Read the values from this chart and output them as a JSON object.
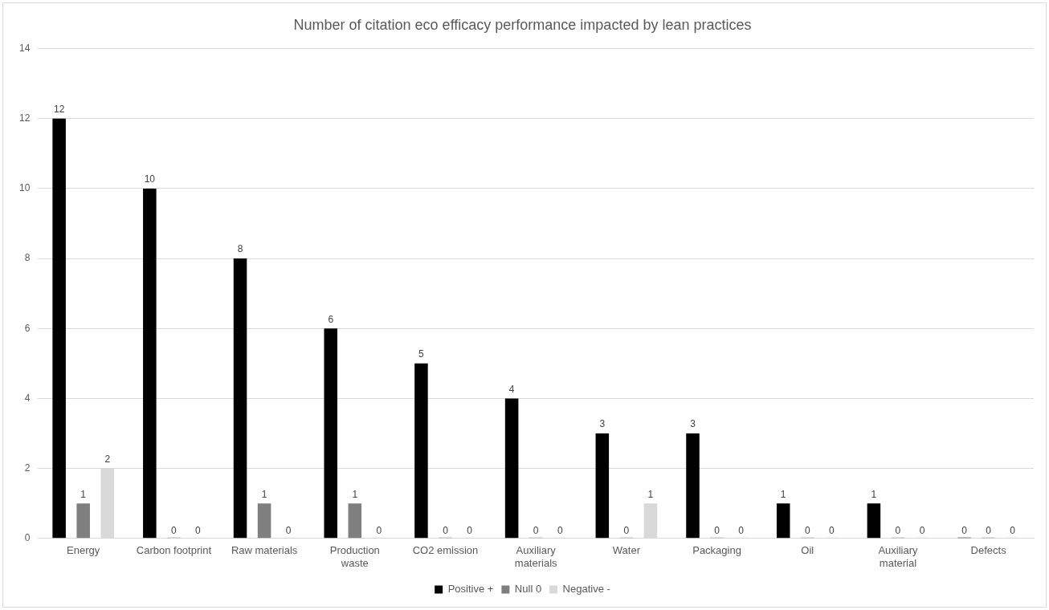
{
  "chart_data": {
    "type": "bar",
    "title": "Number of citation eco efficacy performance impacted by lean practices",
    "categories": [
      "Energy",
      "Carbon footprint",
      "Raw materials",
      "Production waste",
      "CO2 emission",
      "Auxiliary materials",
      "Water",
      "Packaging",
      "Oil",
      "Auxiliary material",
      "Defects"
    ],
    "series": [
      {
        "name": "Positive +",
        "color": "#000000",
        "values": [
          12,
          10,
          8,
          6,
          5,
          4,
          3,
          3,
          1,
          1,
          0
        ]
      },
      {
        "name": "Null 0",
        "color": "#7f7f7f",
        "values": [
          1,
          0,
          1,
          1,
          0,
          0,
          0,
          0,
          0,
          0,
          0
        ]
      },
      {
        "name": "Negative -",
        "color": "#d9d9d9",
        "values": [
          2,
          0,
          0,
          0,
          0,
          0,
          1,
          0,
          0,
          0,
          0
        ]
      }
    ],
    "ylim": [
      0,
      14
    ],
    "yticks": [
      0,
      2,
      4,
      6,
      8,
      10,
      12,
      14
    ],
    "grid": "y",
    "legend": "bottom",
    "data_labels": true
  }
}
